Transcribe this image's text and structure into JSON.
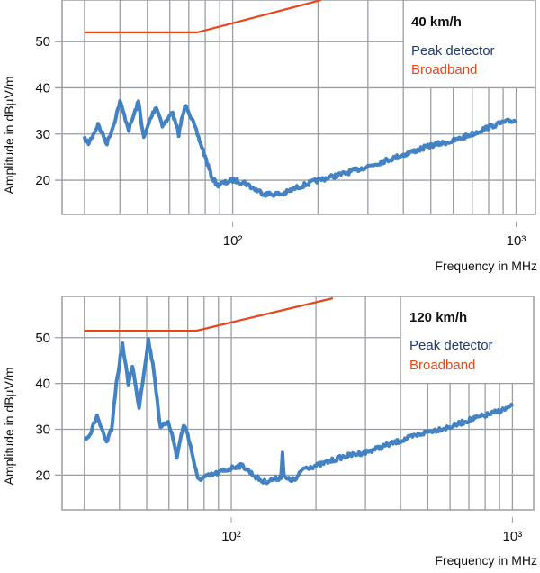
{
  "colors": {
    "peak": "#3a7cc0",
    "broadband": "#e8461c",
    "peak_legend": "#1f3a7a",
    "grid": "#9a9ea3"
  },
  "chart_data": [
    {
      "type": "line",
      "title": "40 km/h",
      "xlabel": "Frequency in MHz",
      "ylabel": "Amplitude in dBµV/m",
      "xscale": "log",
      "xlim": [
        25,
        1170
      ],
      "ylim": [
        12.6,
        59
      ],
      "x_tick_labels": [
        {
          "value": 100,
          "label": "10²"
        },
        {
          "value": 1000,
          "label": "10³"
        }
      ],
      "y_ticks": [
        20,
        30,
        40,
        50
      ],
      "grid": true,
      "legend": "top-right",
      "series": [
        {
          "name": "Peak detector",
          "x": [
            30,
            31,
            33.5,
            36,
            38,
            40,
            43,
            46.5,
            48.6,
            51,
            53.7,
            56.5,
            59,
            60.9,
            64.5,
            66,
            68.4,
            72,
            77,
            80,
            84,
            88,
            95,
            100,
            110,
            120,
            130,
            150,
            170,
            200,
            250,
            300,
            400,
            500,
            600,
            700,
            800,
            900,
            1000
          ],
          "y": [
            29,
            28,
            32,
            28,
            32,
            37,
            31,
            37,
            29,
            33,
            36,
            32,
            33,
            35,
            30,
            33,
            36.5,
            33,
            28,
            25,
            21,
            19,
            19.5,
            20,
            19.5,
            18,
            17,
            17,
            18.5,
            20,
            21.5,
            23,
            25.5,
            27.5,
            28.5,
            30,
            31.5,
            32.5,
            33
          ]
        },
        {
          "name": "Broadband",
          "x": [
            30,
            75,
            205
          ],
          "y": [
            52,
            52,
            59
          ]
        }
      ]
    },
    {
      "type": "line",
      "title": "120 km/h",
      "xlabel": "Frequency in MHz",
      "ylabel": "Amplitude in dBµV/m",
      "xscale": "log",
      "xlim": [
        25,
        1190
      ],
      "ylim": [
        12.4,
        59
      ],
      "x_tick_labels": [
        {
          "value": 100,
          "label": "10²"
        },
        {
          "value": 1000,
          "label": "10³"
        }
      ],
      "y_ticks": [
        20,
        30,
        40,
        50
      ],
      "grid": true,
      "legend": "top-right",
      "series": [
        {
          "name": "Peak detector",
          "x": [
            30,
            31.5,
            33.3,
            34.5,
            36,
            37.5,
            39,
            41,
            43,
            44.5,
            46,
            47,
            50.7,
            53,
            56,
            59.6,
            62,
            64,
            67.6,
            70,
            73,
            76,
            80,
            85,
            90,
            100,
            105,
            110,
            120,
            130,
            140,
            150,
            152,
            154,
            160,
            170,
            180,
            200,
            250,
            300,
            400,
            500,
            600,
            700,
            800,
            900,
            1000
          ],
          "y": [
            28,
            29,
            33,
            30,
            27,
            30,
            40,
            48.5,
            40,
            44,
            38,
            35,
            49.5,
            43,
            30,
            32,
            28,
            24,
            31,
            29,
            24,
            19,
            19.5,
            20,
            20.5,
            21.5,
            22,
            22,
            20,
            18.5,
            19,
            19.5,
            25,
            19.5,
            19,
            19,
            21.5,
            22,
            24,
            25,
            27.5,
            29.5,
            30.5,
            32,
            33,
            34,
            35
          ]
        },
        {
          "name": "Broadband",
          "x": [
            30,
            75,
            230
          ],
          "y": [
            51.5,
            51.5,
            58.6
          ]
        }
      ]
    }
  ]
}
